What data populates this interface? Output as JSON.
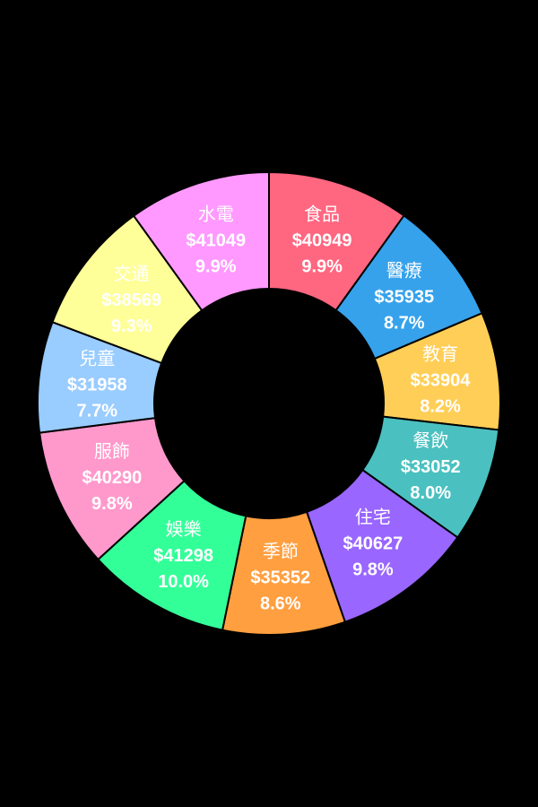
{
  "chart_data": {
    "type": "pie",
    "style": "donut",
    "background": "#000000",
    "slices": [
      {
        "label": "食品",
        "value": 40949,
        "value_text": "$40949",
        "percent_text": "9.9%",
        "color": "#FF6680"
      },
      {
        "label": "醫療",
        "value": 35935,
        "value_text": "$35935",
        "percent_text": "8.7%",
        "color": "#36A2EB"
      },
      {
        "label": "教育",
        "value": 33904,
        "value_text": "$33904",
        "percent_text": "8.2%",
        "color": "#FFCE56"
      },
      {
        "label": "餐飲",
        "value": 33052,
        "value_text": "$33052",
        "percent_text": "8.0%",
        "color": "#4BC0C0"
      },
      {
        "label": "住宅",
        "value": 40627,
        "value_text": "$40627",
        "percent_text": "9.8%",
        "color": "#9966FF"
      },
      {
        "label": "季節",
        "value": 35352,
        "value_text": "$35352",
        "percent_text": "8.6%",
        "color": "#FF9F40"
      },
      {
        "label": "娛樂",
        "value": 41298,
        "value_text": "$41298",
        "percent_text": "10.0%",
        "color": "#33FF99"
      },
      {
        "label": "服飾",
        "value": 40290,
        "value_text": "$40290",
        "percent_text": "9.8%",
        "color": "#FF99CC"
      },
      {
        "label": "兒童",
        "value": 31958,
        "value_text": "$31958",
        "percent_text": "7.7%",
        "color": "#99CCFF"
      },
      {
        "label": "交通",
        "value": 38569,
        "value_text": "$38569",
        "percent_text": "9.3%",
        "color": "#FFFF99"
      },
      {
        "label": "水電",
        "value": 41049,
        "value_text": "$41049",
        "percent_text": "9.9%",
        "color": "#FF99FF"
      }
    ]
  }
}
